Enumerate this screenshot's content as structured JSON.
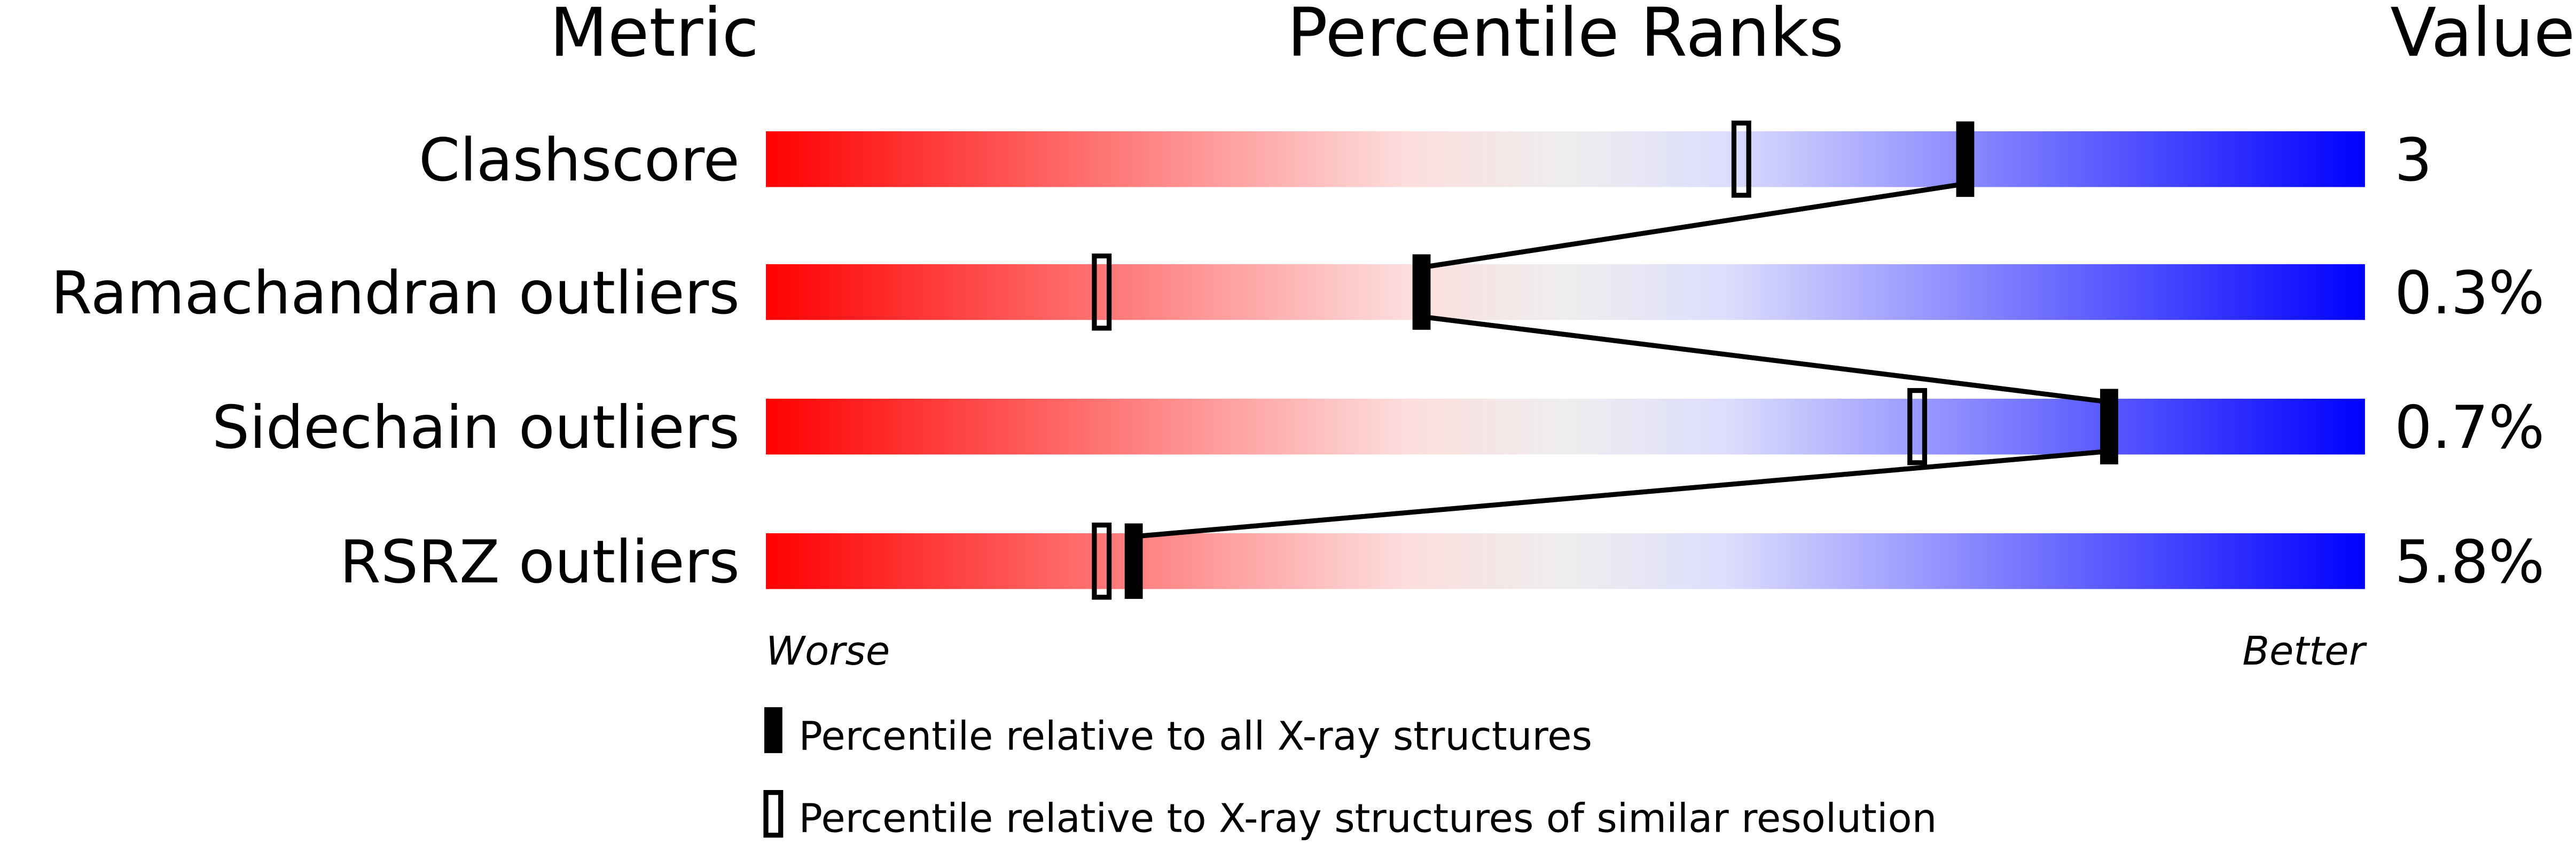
{
  "chart_data": {
    "type": "bar",
    "headers": {
      "metric": "Metric",
      "ranks": "Percentile Ranks",
      "value": "Value"
    },
    "xlim": [
      0,
      100
    ],
    "axis_labels": {
      "left": "Worse",
      "right": "Better"
    },
    "gradient_colors": [
      "#ff0000",
      "#fddddd",
      "#eeeeee",
      "#ddddfd",
      "#0000ff"
    ],
    "metrics": [
      {
        "name": "Clashscore",
        "value": "3",
        "percentile_all": 75,
        "percentile_similar": 61
      },
      {
        "name": "Ramachandran outliers",
        "value": "0.3%",
        "percentile_all": 41,
        "percentile_similar": 21
      },
      {
        "name": "Sidechain outliers",
        "value": "0.7%",
        "percentile_all": 84,
        "percentile_similar": 72
      },
      {
        "name": "RSRZ outliers",
        "value": "5.8%",
        "percentile_all": 23,
        "percentile_similar": 21
      }
    ],
    "legend": [
      {
        "marker": "filled",
        "label": "Percentile relative to all X-ray structures"
      },
      {
        "marker": "outline",
        "label": "Percentile relative to X-ray structures of similar resolution"
      }
    ]
  }
}
